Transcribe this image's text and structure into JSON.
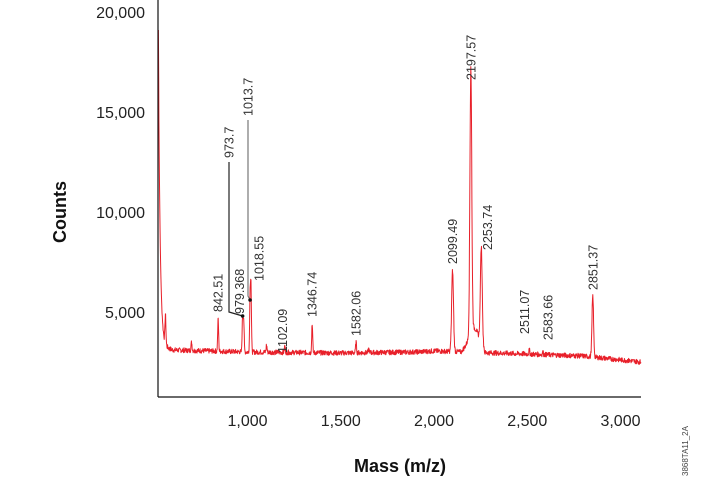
{
  "chart_data": {
    "type": "line",
    "title": "",
    "xlabel": "Mass (m/z)",
    "ylabel": "Counts",
    "xlim": [
      520,
      3110
    ],
    "ylim": [
      750,
      20000
    ],
    "xticks": [
      1000,
      1500,
      2000,
      2500,
      3000
    ],
    "xtick_labels": [
      "1,000",
      "1,500",
      "2,000",
      "2,500",
      "3,000"
    ],
    "yticks": [
      5000,
      10000,
      15000,
      20000
    ],
    "ytick_labels": [
      "5,000",
      "10,000",
      "15,000",
      "20,000"
    ],
    "grid": false,
    "line_color": "#e8202a",
    "baseline": [
      [
        520,
        3300
      ],
      [
        600,
        3100
      ],
      [
        1000,
        3000
      ],
      [
        1500,
        2950
      ],
      [
        1900,
        3000
      ],
      [
        2000,
        3050
      ],
      [
        2500,
        2900
      ],
      [
        2800,
        2800
      ],
      [
        3110,
        2500
      ]
    ],
    "initial_decay": {
      "start_counts": 19100,
      "mz": 522
    },
    "peaks": [
      {
        "mz": 560,
        "counts": 4700,
        "label": ""
      },
      {
        "mz": 700,
        "counts": 3500,
        "label": ""
      },
      {
        "mz": 842.51,
        "counts": 4700,
        "label": "842.51"
      },
      {
        "mz": 973.7,
        "counts": 4800,
        "label": "973.7"
      },
      {
        "mz": 979.368,
        "counts": 4600,
        "label": "979.368"
      },
      {
        "mz": 1013.7,
        "counts": 5600,
        "label": "1013.7"
      },
      {
        "mz": 1018.55,
        "counts": 6250,
        "label": "1018.55"
      },
      {
        "mz": 1102.09,
        "counts": 3350,
        "label": "1102.09"
      },
      {
        "mz": 1200,
        "counts": 3300,
        "label": ""
      },
      {
        "mz": 1346.74,
        "counts": 4450,
        "label": "1346.74"
      },
      {
        "mz": 1582.06,
        "counts": 3500,
        "label": "1582.06"
      },
      {
        "mz": 1650,
        "counts": 3150,
        "label": ""
      },
      {
        "mz": 2099.49,
        "counts": 7100,
        "label": "2099.49"
      },
      {
        "mz": 2197.57,
        "counts": 16300,
        "label": "2197.57"
      },
      {
        "mz": 2253.74,
        "counts": 7800,
        "label": "2253.74"
      },
      {
        "mz": 2511.07,
        "counts": 3100,
        "label": "2511.07"
      },
      {
        "mz": 2583.66,
        "counts": 3000,
        "label": "2583.66"
      },
      {
        "mz": 2851.37,
        "counts": 5800,
        "label": "2851.37"
      }
    ]
  },
  "figure_code": "3868TA11_2A"
}
